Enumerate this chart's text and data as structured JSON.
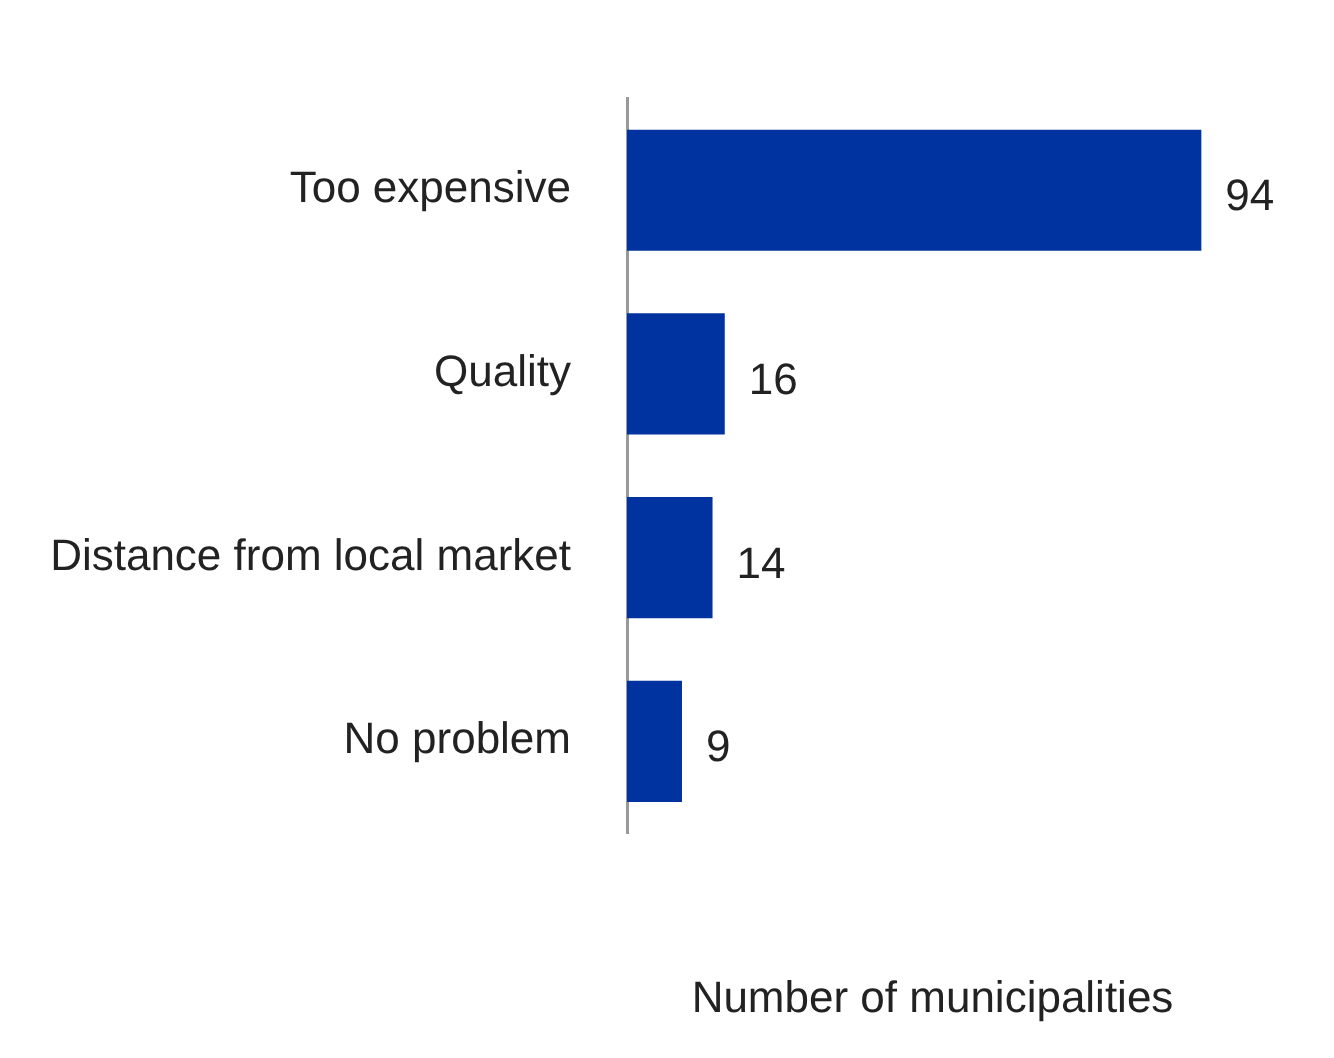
{
  "chart_data": {
    "type": "bar",
    "orientation": "horizontal",
    "xlabel": "Number of municipalities",
    "categories": [
      "Too expensive",
      "Quality",
      "Distance from local market",
      "No problem"
    ],
    "values": [
      94,
      16,
      14,
      9
    ],
    "color": "#0033a0",
    "data_labels": true,
    "grid": false,
    "legend": false
  }
}
